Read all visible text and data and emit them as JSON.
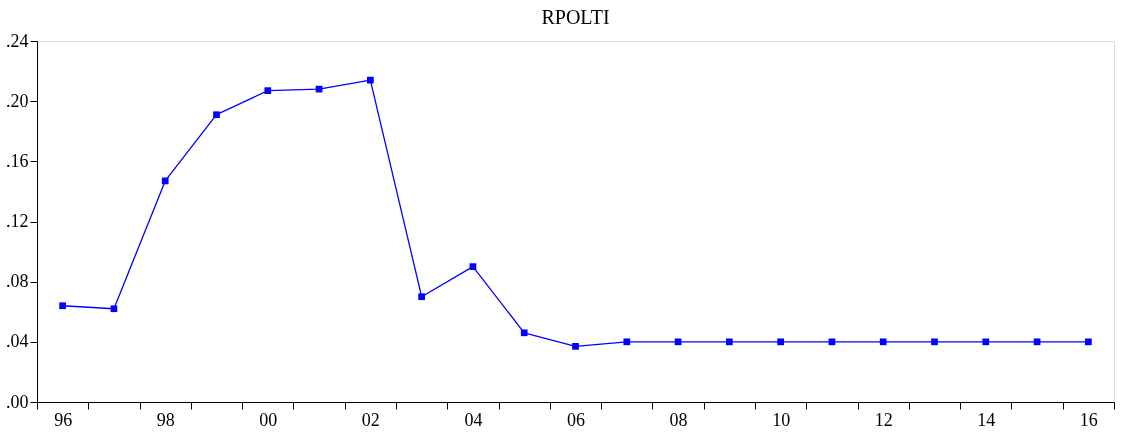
{
  "chart_data": {
    "type": "line",
    "title": "RPOLTI",
    "categories": [
      "96",
      null,
      "98",
      null,
      "00",
      null,
      "02",
      null,
      "04",
      null,
      "06",
      null,
      "08",
      null,
      "10",
      null,
      "12",
      null,
      "14",
      null,
      "16"
    ],
    "series": [
      {
        "color": "#0000ff",
        "values": [
          0.064,
          0.062,
          0.147,
          0.191,
          0.207,
          0.208,
          0.214,
          0.07,
          0.09,
          0.046,
          0.037,
          0.04,
          0.04,
          0.04,
          0.04,
          0.04,
          0.04,
          0.04,
          0.04,
          0.04,
          0.04
        ]
      }
    ],
    "ylim": [
      0,
      0.24
    ],
    "yticks": [
      {
        "value": 0,
        "label": ".00"
      },
      {
        "value": 0.04,
        "label": ".04"
      },
      {
        "value": 0.08,
        "label": ".08"
      },
      {
        "value": 0.12,
        "label": ".12"
      },
      {
        "value": 0.16,
        "label": ".16"
      },
      {
        "value": 0.2,
        "label": ".20"
      },
      {
        "value": 0.24,
        "label": ".24"
      }
    ],
    "grid": false,
    "marker": "square",
    "line_style": "solid"
  }
}
